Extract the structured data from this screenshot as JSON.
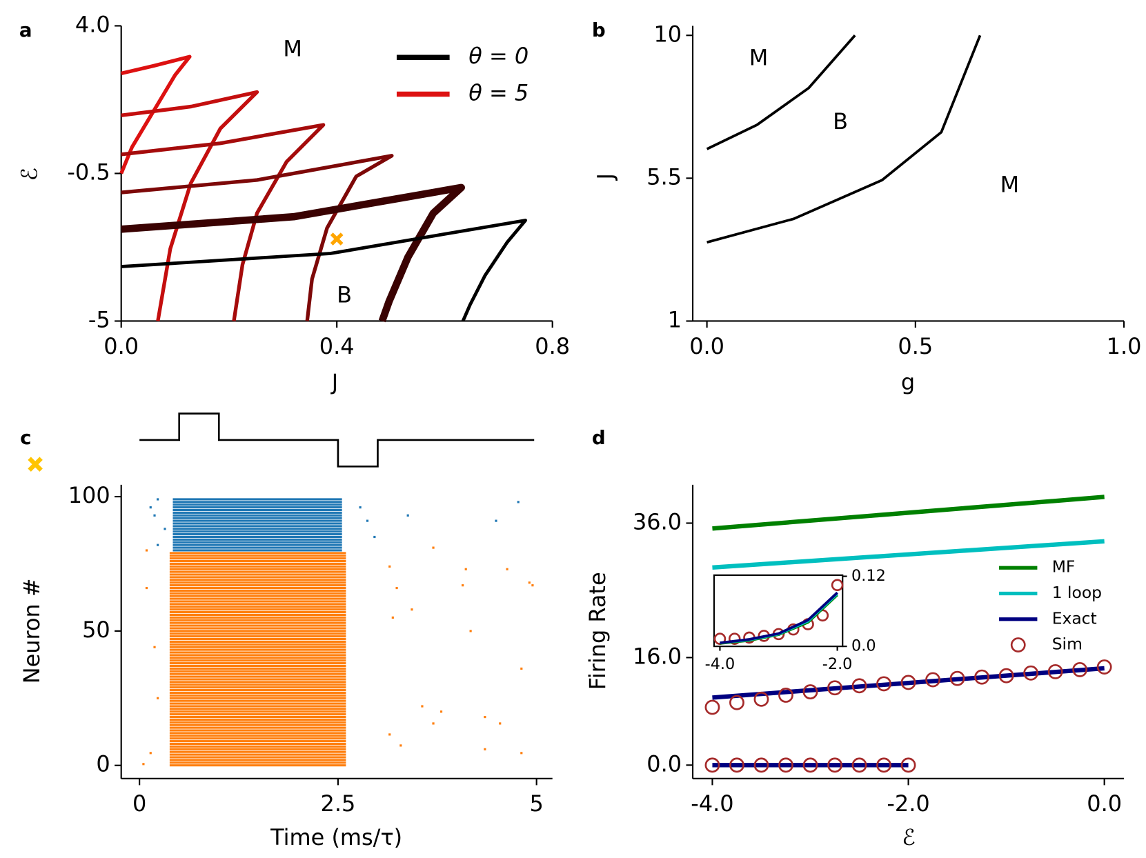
{
  "chart_data": [
    {
      "panel": "a",
      "type": "line",
      "xlabel": "J",
      "ylabel": "ℰ",
      "xlim": [
        0,
        0.8
      ],
      "ylim": [
        -5,
        4
      ],
      "xticks": [
        {
          "value": 0,
          "label": "0.0"
        },
        0.4,
        0.8
      ],
      "yticks": [
        -5,
        -0.5,
        {
          "value": 4,
          "label": "4.0"
        }
      ],
      "series": [
        {
          "color": "#dd1111",
          "x": [
            0,
            0.06,
            0.127,
            0.1,
            0.06,
            0.02,
            0
          ],
          "values": [
            2.55,
            2.78,
            3.06,
            2.5,
            1.4,
            0.3,
            -0.5
          ]
        },
        {
          "color": "#c40e0e",
          "x": [
            0,
            0.13,
            0.252,
            0.184,
            0.129,
            0.091,
            0.068
          ],
          "values": [
            1.27,
            1.54,
            1.98,
            0.87,
            -0.8,
            -2.8,
            -5
          ]
        },
        {
          "color": "#a50b0b",
          "x": [
            0,
            0.184,
            0.375,
            0.307,
            0.252,
            0.225,
            0.209
          ],
          "values": [
            0.08,
            0.42,
            0.98,
            -0.14,
            -1.71,
            -3.28,
            -5
          ]
        },
        {
          "color": "#7d0808",
          "x": [
            0,
            0.252,
            0.502,
            0.436,
            0.382,
            0.354,
            0.345
          ],
          "values": [
            -1.08,
            -0.7,
            0.04,
            -0.59,
            -2.16,
            -3.72,
            -5
          ]
        },
        {
          "color": "#3a0202",
          "x": [
            0,
            0.32,
            0.631,
            0.579,
            0.532,
            0.497,
            0.484
          ],
          "values": [
            -2.2,
            -1.82,
            -0.93,
            -1.71,
            -3.05,
            -4.4,
            -5
          ]
        },
        {
          "color": "#000000",
          "x": [
            0,
            0.388,
            0.75,
            0.716,
            0.675,
            0.647,
            0.634
          ],
          "values": [
            -3.34,
            -2.94,
            -1.93,
            -2.6,
            -3.61,
            -4.51,
            -5
          ]
        }
      ],
      "legend": [
        {
          "name": "θ = 0",
          "color": "#000000"
        },
        {
          "name": "θ = 5",
          "color": "#dd1111"
        }
      ],
      "annotations": [
        {
          "text": "M",
          "x": 0.318,
          "y": 3.26
        },
        {
          "text": "B",
          "x": 0.414,
          "y": -4.24
        }
      ],
      "marker": {
        "x": 0.4,
        "y": -2.5,
        "color": "#ffa500"
      }
    },
    {
      "panel": "b",
      "type": "line",
      "xlabel": "g",
      "ylabel": "J",
      "xlim": [
        -0.034,
        1.0
      ],
      "ylim": [
        1,
        10.3
      ],
      "xticks": [
        {
          "value": 0,
          "label": "0.0"
        },
        0.5,
        {
          "value": 1,
          "label": "1.0"
        }
      ],
      "yticks": [
        1,
        5.5,
        10
      ],
      "series": [
        {
          "color": "#000000",
          "x": [
            0,
            0.12,
            0.244,
            0.355
          ],
          "values": [
            6.42,
            7.18,
            8.34,
            10
          ]
        },
        {
          "color": "#000000",
          "x": [
            0,
            0.208,
            0.42,
            0.562,
            0.655
          ],
          "values": [
            3.48,
            4.22,
            5.44,
            6.95,
            10
          ]
        }
      ],
      "annotations": [
        {
          "text": "M",
          "x": 0.124,
          "y": 9.26
        },
        {
          "text": "B",
          "x": 0.32,
          "y": 7.25
        },
        {
          "text": "M",
          "x": 0.726,
          "y": 5.26
        }
      ]
    },
    {
      "panel": "c",
      "type": "raster",
      "xlabel": "Time (ms/τ)",
      "ylabel": "Neuron #",
      "xlim": [
        -0.23,
        5.2
      ],
      "ylim": [
        -4.9,
        104.4
      ],
      "xticks": [
        0,
        2.5,
        5
      ],
      "yticks": [
        0,
        50,
        100
      ],
      "groups": [
        {
          "color": "#ff7f0e",
          "neurons": [
            0,
            79
          ],
          "burst": [
            0.38,
            2.6
          ]
        },
        {
          "color": "#1f77b4",
          "neurons": [
            80,
            99
          ],
          "burst": [
            0.42,
            2.55
          ]
        }
      ],
      "spikes": [
        {
          "color": "#1f77b4",
          "x": [
            0.14,
            0.23,
            0.19,
            0.32,
            3.38,
            4.49,
            4.77,
            2.87,
            2.78,
            2.96,
            0.23
          ],
          "values": [
            96,
            99,
            93,
            88,
            93,
            91,
            98,
            91,
            96,
            85,
            82
          ]
        },
        {
          "color": "#ff7f0e",
          "x": [
            0.09,
            0.05,
            0.14,
            0.19,
            0.09,
            0.23,
            3.15,
            3.24,
            3.19,
            3.43,
            3.7,
            4.07,
            4.11,
            4.63,
            4.91,
            4.95,
            3.29,
            3.56,
            3.8,
            3.7,
            4.35,
            4.54,
            4.35,
            4.81,
            4.17,
            4.81,
            3.15
          ],
          "values": [
            80,
            0.5,
            4.6,
            44,
            66,
            25,
            74,
            66,
            55,
            58,
            81,
            67,
            73,
            73,
            68,
            67,
            7.4,
            22,
            20,
            15.6,
            18,
            15.6,
            6,
            4.6,
            50,
            36,
            11.5
          ]
        }
      ],
      "stimulus": {
        "x": [
          0,
          0.5,
          0.5,
          1,
          1,
          2.5,
          2.5,
          3,
          3,
          4.97
        ],
        "values": [
          0,
          0,
          1,
          1,
          0,
          0,
          -1,
          -1,
          0,
          0
        ]
      }
    },
    {
      "panel": "d",
      "type": "line",
      "xlabel": "ℰ",
      "ylabel": "Firing Rate",
      "xlim": [
        -4.2,
        0.2
      ],
      "ylim": [
        -2,
        41.7
      ],
      "xticks": [
        {
          "value": -4,
          "label": "-4.0"
        },
        {
          "value": -2,
          "label": "-2.0"
        },
        {
          "value": 0,
          "label": "0.0"
        }
      ],
      "yticks": [
        {
          "value": 0,
          "label": "0.0"
        },
        {
          "value": 16,
          "label": "16.0"
        },
        {
          "value": 36,
          "label": "36.0"
        }
      ],
      "series": [
        {
          "name": "MF",
          "color": "#008000",
          "x": [
            -4,
            0
          ],
          "values": [
            35.2,
            39.9
          ]
        },
        {
          "name": "1 loop",
          "color": "#00bfbf",
          "x": [
            -4,
            0
          ],
          "values": [
            29.4,
            33.3
          ]
        },
        {
          "name": "Exact",
          "color": "#000080",
          "x": [
            -4,
            0
          ],
          "values": [
            10.05,
            14.4
          ]
        },
        {
          "color": "#000080",
          "x": [
            -4,
            -2
          ],
          "values": [
            0,
            0
          ]
        },
        {
          "name": "Sim",
          "color": "#a52a2a",
          "marker": "circle",
          "x": [
            -4,
            -3.75,
            -3.5,
            -3.25,
            -3,
            -2.75,
            -2.5,
            -2.25,
            -2,
            -1.75,
            -1.5,
            -1.25,
            -1,
            -0.75,
            -0.5,
            -0.25,
            0
          ],
          "values": [
            8.6,
            9.3,
            9.8,
            10.4,
            10.9,
            11.5,
            11.8,
            12.1,
            12.3,
            12.7,
            12.9,
            13.1,
            13.3,
            13.7,
            13.9,
            14.2,
            14.6
          ]
        },
        {
          "color": "#a52a2a",
          "marker": "circle",
          "x": [
            -4,
            -3.75,
            -3.5,
            -3.25,
            -3,
            -2.75,
            -2.5,
            -2.25,
            -2
          ],
          "values": [
            0,
            0,
            0,
            0,
            0,
            0,
            0,
            0,
            0
          ]
        }
      ]
    },
    {
      "type": "line",
      "xlim": [
        -4.1,
        -1.91
      ],
      "ylim": [
        0,
        0.122
      ],
      "xticks": [
        {
          "value": -4,
          "label": "-4.0"
        },
        {
          "value": -2,
          "label": "-2.0"
        }
      ],
      "yticks": [
        {
          "value": 0,
          "label": "0.0"
        },
        0.12
      ],
      "series": [
        {
          "color": "#a52a2a",
          "marker": "circle",
          "x": [
            -4,
            -3.75,
            -3.5,
            -3.25,
            -3,
            -2.75,
            -2.5,
            -2.25,
            -2
          ],
          "values": [
            0.013,
            0.013,
            0.015,
            0.018,
            0.021,
            0.029,
            0.038,
            0.053,
            0.105
          ]
        },
        {
          "color": "#008000",
          "x": [
            -4,
            -3.5,
            -3,
            -2.5,
            -2
          ],
          "values": [
            0.005,
            0.01,
            0.02,
            0.041,
            0.088
          ]
        },
        {
          "color": "#00bfbf",
          "x": [
            -4,
            -3.5,
            -3,
            -2.5,
            -2
          ],
          "values": [
            0.006,
            0.011,
            0.021,
            0.043,
            0.09
          ]
        },
        {
          "color": "#000080",
          "x": [
            -4,
            -3.5,
            -3,
            -2.5,
            -2
          ],
          "values": [
            0.006,
            0.012,
            0.022,
            0.045,
            0.092
          ]
        }
      ]
    }
  ]
}
